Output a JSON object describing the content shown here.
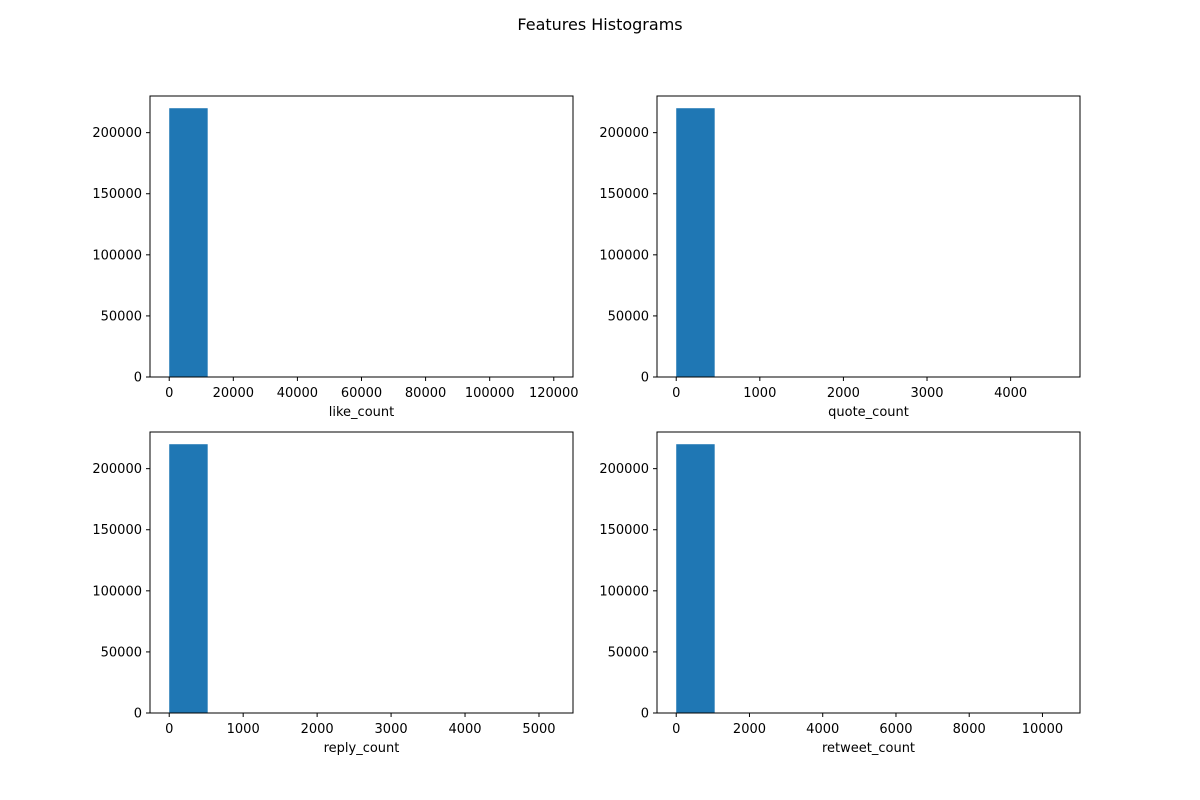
{
  "figure": {
    "title": "Features Histograms"
  },
  "colors": {
    "bar": "#1f77b4",
    "axis": "#000000",
    "background": "#ffffff"
  },
  "chart_data": [
    {
      "type": "bar",
      "histogram": true,
      "title": "",
      "xlabel": "like_count",
      "ylabel": "",
      "xlim": [
        -6000,
        126000
      ],
      "ylim": [
        0,
        230000
      ],
      "xticks": [
        0,
        20000,
        40000,
        60000,
        80000,
        100000,
        120000
      ],
      "xtick_labels": [
        "0",
        "20000",
        "40000",
        "60000",
        "80000",
        "100000",
        "120000"
      ],
      "yticks": [
        0,
        50000,
        100000,
        150000,
        200000
      ],
      "ytick_labels": [
        "0",
        "50000",
        "100000",
        "150000",
        "200000"
      ],
      "bins": [
        {
          "x0": 0,
          "x1": 12000,
          "count": 220000
        },
        {
          "x0": 12000,
          "x1": 24000,
          "count": 0
        },
        {
          "x0": 24000,
          "x1": 36000,
          "count": 0
        },
        {
          "x0": 36000,
          "x1": 48000,
          "count": 0
        },
        {
          "x0": 48000,
          "x1": 60000,
          "count": 0
        },
        {
          "x0": 60000,
          "x1": 72000,
          "count": 0
        },
        {
          "x0": 72000,
          "x1": 84000,
          "count": 0
        },
        {
          "x0": 84000,
          "x1": 96000,
          "count": 0
        },
        {
          "x0": 96000,
          "x1": 108000,
          "count": 0
        },
        {
          "x0": 108000,
          "x1": 120000,
          "count": 0
        }
      ],
      "grid": false,
      "legend": "none"
    },
    {
      "type": "bar",
      "histogram": true,
      "title": "",
      "xlabel": "quote_count",
      "ylabel": "",
      "xlim": [
        -230,
        4830
      ],
      "ylim": [
        0,
        230000
      ],
      "xticks": [
        0,
        1000,
        2000,
        3000,
        4000
      ],
      "xtick_labels": [
        "0",
        "1000",
        "2000",
        "3000",
        "4000"
      ],
      "yticks": [
        0,
        50000,
        100000,
        150000,
        200000
      ],
      "ytick_labels": [
        "0",
        "50000",
        "100000",
        "150000",
        "200000"
      ],
      "bins": [
        {
          "x0": 0,
          "x1": 460,
          "count": 220000
        },
        {
          "x0": 460,
          "x1": 920,
          "count": 0
        },
        {
          "x0": 920,
          "x1": 1380,
          "count": 0
        },
        {
          "x0": 1380,
          "x1": 1840,
          "count": 0
        },
        {
          "x0": 1840,
          "x1": 2300,
          "count": 0
        },
        {
          "x0": 2300,
          "x1": 2760,
          "count": 0
        },
        {
          "x0": 2760,
          "x1": 3220,
          "count": 0
        },
        {
          "x0": 3220,
          "x1": 3680,
          "count": 0
        },
        {
          "x0": 3680,
          "x1": 4140,
          "count": 0
        },
        {
          "x0": 4140,
          "x1": 4600,
          "count": 0
        }
      ],
      "grid": false,
      "legend": "none"
    },
    {
      "type": "bar",
      "histogram": true,
      "title": "",
      "xlabel": "reply_count",
      "ylabel": "",
      "xlim": [
        -260,
        5460
      ],
      "ylim": [
        0,
        230000
      ],
      "xticks": [
        0,
        1000,
        2000,
        3000,
        4000,
        5000
      ],
      "xtick_labels": [
        "0",
        "1000",
        "2000",
        "3000",
        "4000",
        "5000"
      ],
      "yticks": [
        0,
        50000,
        100000,
        150000,
        200000
      ],
      "ytick_labels": [
        "0",
        "50000",
        "100000",
        "150000",
        "200000"
      ],
      "bins": [
        {
          "x0": 0,
          "x1": 520,
          "count": 220000
        },
        {
          "x0": 520,
          "x1": 1040,
          "count": 0
        },
        {
          "x0": 1040,
          "x1": 1560,
          "count": 0
        },
        {
          "x0": 1560,
          "x1": 2080,
          "count": 0
        },
        {
          "x0": 2080,
          "x1": 2600,
          "count": 0
        },
        {
          "x0": 2600,
          "x1": 3120,
          "count": 0
        },
        {
          "x0": 3120,
          "x1": 3640,
          "count": 0
        },
        {
          "x0": 3640,
          "x1": 4160,
          "count": 0
        },
        {
          "x0": 4160,
          "x1": 4680,
          "count": 0
        },
        {
          "x0": 4680,
          "x1": 5200,
          "count": 0
        }
      ],
      "grid": false,
      "legend": "none"
    },
    {
      "type": "bar",
      "histogram": true,
      "title": "",
      "xlabel": "retweet_count",
      "ylabel": "",
      "xlim": [
        -525,
        11025
      ],
      "ylim": [
        0,
        230000
      ],
      "xticks": [
        0,
        2000,
        4000,
        6000,
        8000,
        10000
      ],
      "xtick_labels": [
        "0",
        "2000",
        "4000",
        "6000",
        "8000",
        "10000"
      ],
      "yticks": [
        0,
        50000,
        100000,
        150000,
        200000
      ],
      "ytick_labels": [
        "0",
        "50000",
        "100000",
        "150000",
        "200000"
      ],
      "bins": [
        {
          "x0": 0,
          "x1": 1050,
          "count": 220000
        },
        {
          "x0": 1050,
          "x1": 2100,
          "count": 0
        },
        {
          "x0": 2100,
          "x1": 3150,
          "count": 0
        },
        {
          "x0": 3150,
          "x1": 4200,
          "count": 0
        },
        {
          "x0": 4200,
          "x1": 5250,
          "count": 0
        },
        {
          "x0": 5250,
          "x1": 6300,
          "count": 0
        },
        {
          "x0": 6300,
          "x1": 7350,
          "count": 0
        },
        {
          "x0": 7350,
          "x1": 8400,
          "count": 0
        },
        {
          "x0": 8400,
          "x1": 9450,
          "count": 0
        },
        {
          "x0": 9450,
          "x1": 10500,
          "count": 0
        }
      ],
      "grid": false,
      "legend": "none"
    }
  ]
}
